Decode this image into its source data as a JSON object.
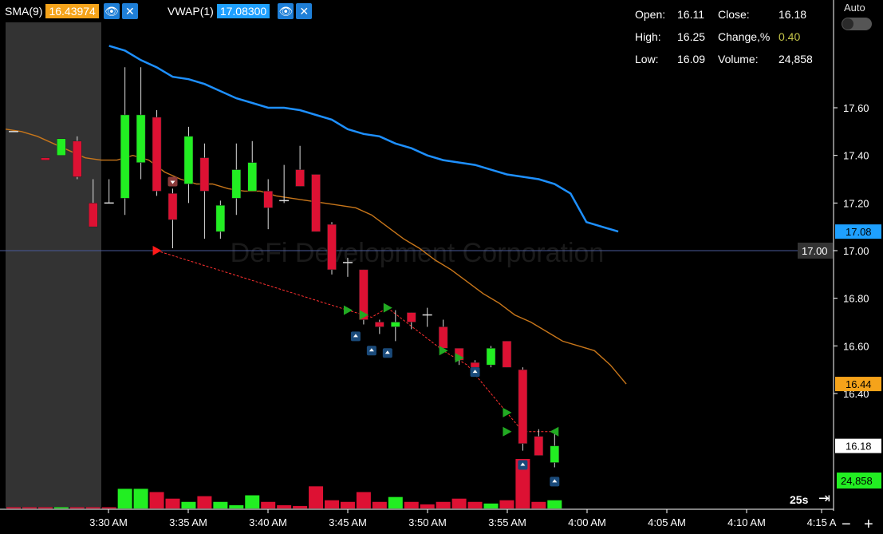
{
  "indicators": [
    {
      "name": "SMA(9)",
      "value": "16.43974",
      "color": "#f5a31a"
    },
    {
      "name": "VWAP(1)",
      "value": "17.08300",
      "color": "#1ea0ff"
    }
  ],
  "ohlc": {
    "open_label": "Open:",
    "open": "16.11",
    "close_label": "Close:",
    "close": "16.18",
    "high_label": "High:",
    "high": "16.25",
    "change_label": "Change,%",
    "change": "0.40",
    "low_label": "Low:",
    "low": "16.09",
    "volume_label": "Volume:",
    "volume": "24,858"
  },
  "auto_label": "Auto",
  "watermark": "DeFi Development Corporation",
  "interval_label": "25s",
  "zoom_out": "−",
  "zoom_in": "+",
  "price_axis": {
    "min": 16.2,
    "max": 17.8,
    "ticks": [
      "17.60",
      "17.40",
      "17.20",
      "17.00",
      "16.80",
      "16.60",
      "16.40"
    ]
  },
  "price_badges": [
    {
      "value": 17.08,
      "label": "17.08",
      "bg": "#1ea0ff",
      "fg": "#000"
    },
    {
      "value": 16.44,
      "label": "16.44",
      "bg": "#f5a31a",
      "fg": "#000"
    },
    {
      "value": 16.18,
      "label": "16.18",
      "bg": "#ffffff",
      "fg": "#000"
    }
  ],
  "volume_badge": {
    "label": "24,858",
    "bg": "#22ee22",
    "fg": "#000"
  },
  "hline": {
    "value": 17.0,
    "label": "17.00"
  },
  "time_axis": [
    "3:30 AM",
    "3:35 AM",
    "3:40 AM",
    "3:45 AM",
    "3:50 AM",
    "3:55 AM",
    "4:00 AM",
    "4:05 AM",
    "4:10 AM",
    "4:15 A"
  ],
  "colors": {
    "up": "#22ee22",
    "down": "#dd1133",
    "sma": "#c8761a",
    "vwap": "#1e90ff",
    "premarket": "#333333"
  },
  "chart_data": {
    "type": "candlestick",
    "interval": "25s",
    "x": [
      "3:27:55",
      "3:28:20",
      "3:28:45",
      "3:29:10",
      "3:29:35",
      "3:30:00",
      "3:30:25",
      "3:30:50",
      "3:31:15",
      "3:31:40",
      "3:32:05",
      "3:32:30",
      "3:32:55",
      "3:33:20",
      "3:33:45",
      "3:34:10",
      "3:34:35",
      "3:35:00",
      "3:35:25",
      "3:35:50",
      "3:36:15",
      "3:36:40",
      "3:37:05",
      "3:37:30",
      "3:37:55",
      "3:38:20",
      "3:38:45",
      "3:39:10",
      "3:39:35",
      "3:40:00",
      "3:40:25",
      "3:40:50",
      "3:41:15",
      "3:41:40",
      "3:42:05",
      "3:42:30",
      "3:42:55",
      "3:43:20",
      "3:43:45",
      "3:44:10",
      "3:44:35",
      "3:45:00",
      "3:45:25",
      "3:45:50",
      "3:46:15",
      "3:46:40",
      "3:47:05",
      "3:47:30",
      "3:47:55",
      "3:48:20",
      "3:48:45",
      "3:49:10",
      "3:49:35",
      "3:50:00",
      "3:50:25",
      "3:50:50",
      "3:51:15",
      "3:51:40",
      "3:52:05",
      "3:52:30",
      "3:52:55",
      "3:53:20",
      "3:53:45",
      "3:54:10",
      "3:54:35",
      "3:55:00",
      "3:55:25",
      "3:55:50",
      "3:56:15",
      "3:56:40"
    ],
    "candles": [
      {
        "t": 0,
        "o": 17.5,
        "h": 17.5,
        "l": 17.5,
        "c": 17.5
      },
      {
        "t": 2,
        "o": 17.39,
        "h": 17.39,
        "l": 17.38,
        "c": 17.38
      },
      {
        "t": 3,
        "o": 17.4,
        "h": 17.47,
        "l": 17.4,
        "c": 17.47
      },
      {
        "t": 4,
        "o": 17.46,
        "h": 17.48,
        "l": 17.3,
        "c": 17.31
      },
      {
        "t": 5,
        "o": 17.2,
        "h": 17.3,
        "l": 17.1,
        "c": 17.1
      },
      {
        "t": 6,
        "o": 17.2,
        "h": 17.3,
        "l": 17.2,
        "c": 17.2
      },
      {
        "t": 7,
        "o": 17.22,
        "h": 17.77,
        "l": 17.15,
        "c": 17.57
      },
      {
        "t": 8,
        "o": 17.37,
        "h": 17.77,
        "l": 17.3,
        "c": 17.57
      },
      {
        "t": 9,
        "o": 17.56,
        "h": 17.59,
        "l": 17.23,
        "c": 17.25
      },
      {
        "t": 10,
        "o": 17.24,
        "h": 17.26,
        "l": 17.01,
        "c": 17.13
      },
      {
        "t": 11,
        "o": 17.28,
        "h": 17.52,
        "l": 17.2,
        "c": 17.48
      },
      {
        "t": 12,
        "o": 17.39,
        "h": 17.45,
        "l": 17.05,
        "c": 17.25
      },
      {
        "t": 13,
        "o": 17.08,
        "h": 17.21,
        "l": 17.05,
        "c": 17.19
      },
      {
        "t": 14,
        "o": 17.22,
        "h": 17.45,
        "l": 17.15,
        "c": 17.34
      },
      {
        "t": 15,
        "o": 17.25,
        "h": 17.46,
        "l": 17.25,
        "c": 17.37
      },
      {
        "t": 16,
        "o": 17.25,
        "h": 17.3,
        "l": 17.09,
        "c": 17.18
      },
      {
        "t": 17,
        "o": 17.21,
        "h": 17.36,
        "l": 17.2,
        "c": 17.21
      },
      {
        "t": 18,
        "o": 17.34,
        "h": 17.44,
        "l": 17.27,
        "c": 17.27
      },
      {
        "t": 19,
        "o": 17.32,
        "h": 17.32,
        "l": 17.08,
        "c": 17.08
      },
      {
        "t": 20,
        "o": 17.11,
        "h": 17.12,
        "l": 16.9,
        "c": 16.92
      },
      {
        "t": 21,
        "o": 16.95,
        "h": 16.97,
        "l": 16.89,
        "c": 16.95
      },
      {
        "t": 22,
        "o": 16.92,
        "h": 16.92,
        "l": 16.69,
        "c": 16.71
      },
      {
        "t": 23,
        "o": 16.7,
        "h": 16.71,
        "l": 16.65,
        "c": 16.68
      },
      {
        "t": 24,
        "o": 16.68,
        "h": 16.75,
        "l": 16.62,
        "c": 16.7
      },
      {
        "t": 25,
        "o": 16.74,
        "h": 16.74,
        "l": 16.67,
        "c": 16.7
      },
      {
        "t": 26,
        "o": 16.73,
        "h": 16.76,
        "l": 16.68,
        "c": 16.73
      },
      {
        "t": 27,
        "o": 16.68,
        "h": 16.71,
        "l": 16.6,
        "c": 16.59
      },
      {
        "t": 28,
        "o": 16.59,
        "h": 16.58,
        "l": 16.52,
        "c": 16.54
      },
      {
        "t": 29,
        "o": 16.53,
        "h": 16.54,
        "l": 16.51,
        "c": 16.51
      },
      {
        "t": 30,
        "o": 16.52,
        "h": 16.6,
        "l": 16.51,
        "c": 16.59
      },
      {
        "t": 31,
        "o": 16.62,
        "h": 16.62,
        "l": 16.51,
        "c": 16.51
      },
      {
        "t": 32,
        "o": 16.5,
        "h": 16.51,
        "l": 16.16,
        "c": 16.19
      },
      {
        "t": 33,
        "o": 16.22,
        "h": 16.25,
        "l": 16.14,
        "c": 16.14
      },
      {
        "t": 34,
        "o": 16.11,
        "h": 16.25,
        "l": 16.09,
        "c": 16.18
      }
    ],
    "volume": [
      {
        "t": 0,
        "v": 100,
        "c": "down"
      },
      {
        "t": 1,
        "v": 100,
        "c": "down"
      },
      {
        "t": 2,
        "v": 100,
        "c": "down"
      },
      {
        "t": 3,
        "v": 120,
        "c": "up"
      },
      {
        "t": 4,
        "v": 100,
        "c": "down"
      },
      {
        "t": 5,
        "v": 100,
        "c": "down"
      },
      {
        "t": 6,
        "v": 100,
        "c": "down"
      },
      {
        "t": 7,
        "v": 25400,
        "c": "up"
      },
      {
        "t": 8,
        "v": 25400,
        "c": "up"
      },
      {
        "t": 9,
        "v": 21200,
        "c": "down"
      },
      {
        "t": 10,
        "v": 12700,
        "c": "down"
      },
      {
        "t": 11,
        "v": 8500,
        "c": "up"
      },
      {
        "t": 12,
        "v": 15900,
        "c": "down"
      },
      {
        "t": 13,
        "v": 8500,
        "c": "up"
      },
      {
        "t": 14,
        "v": 4200,
        "c": "up"
      },
      {
        "t": 15,
        "v": 17000,
        "c": "up"
      },
      {
        "t": 16,
        "v": 8500,
        "c": "down"
      },
      {
        "t": 17,
        "v": 4200,
        "c": "down"
      },
      {
        "t": 18,
        "v": 3200,
        "c": "down"
      },
      {
        "t": 19,
        "v": 28600,
        "c": "down"
      },
      {
        "t": 20,
        "v": 10600,
        "c": "down"
      },
      {
        "t": 21,
        "v": 8500,
        "c": "down"
      },
      {
        "t": 22,
        "v": 21200,
        "c": "down"
      },
      {
        "t": 23,
        "v": 8500,
        "c": "down"
      },
      {
        "t": 24,
        "v": 14800,
        "c": "up"
      },
      {
        "t": 25,
        "v": 8500,
        "c": "down"
      },
      {
        "t": 26,
        "v": 5300,
        "c": "down"
      },
      {
        "t": 27,
        "v": 8500,
        "c": "down"
      },
      {
        "t": 28,
        "v": 12700,
        "c": "down"
      },
      {
        "t": 29,
        "v": 8500,
        "c": "down"
      },
      {
        "t": 30,
        "v": 6400,
        "c": "up"
      },
      {
        "t": 31,
        "v": 10600,
        "c": "down"
      },
      {
        "t": 32,
        "v": 64000,
        "c": "down"
      },
      {
        "t": 33,
        "v": 8500,
        "c": "down"
      },
      {
        "t": 34,
        "v": 10600,
        "c": "up"
      }
    ],
    "vwap": [
      17.86,
      17.84,
      17.8,
      17.77,
      17.73,
      17.72,
      17.7,
      17.67,
      17.64,
      17.62,
      17.6,
      17.6,
      17.59,
      17.57,
      17.55,
      17.51,
      17.49,
      17.48,
      17.45,
      17.43,
      17.4,
      17.38,
      17.37,
      17.36,
      17.34,
      17.32,
      17.31,
      17.3,
      17.28,
      17.24,
      17.12,
      17.1,
      17.08
    ],
    "vwap_start": 6,
    "sma": [
      17.51,
      17.5,
      17.48,
      17.45,
      17.42,
      17.39,
      17.38,
      17.38,
      17.4,
      17.38,
      17.33,
      17.3,
      17.28,
      17.28,
      17.26,
      17.25,
      17.25,
      17.23,
      17.22,
      17.21,
      17.2,
      17.19,
      17.18,
      17.15,
      17.1,
      17.05,
      17.01,
      16.96,
      16.92,
      16.87,
      16.82,
      16.78,
      16.73,
      16.7,
      16.66,
      16.62,
      16.6,
      16.58,
      16.52,
      16.44
    ],
    "sma_t": [
      0,
      1,
      2,
      3,
      4,
      5,
      6,
      7,
      8,
      9,
      10,
      11,
      12,
      13,
      14,
      15,
      16,
      17,
      18,
      19,
      20,
      21,
      22,
      23,
      24,
      25,
      26,
      27,
      28,
      29,
      30,
      31,
      32,
      33,
      34,
      35,
      36,
      37,
      38,
      39
    ],
    "trade_line": [
      {
        "t": 9,
        "p": 17.0
      },
      {
        "t": 21,
        "p": 16.75
      },
      {
        "t": 22.5,
        "p": 16.72
      },
      {
        "t": 23.5,
        "p": 16.76
      },
      {
        "t": 27,
        "p": 16.58
      },
      {
        "t": 28.5,
        "p": 16.52
      },
      {
        "t": 31,
        "p": 16.32
      },
      {
        "t": 32,
        "p": 16.24
      },
      {
        "t": 34,
        "p": 16.24
      }
    ],
    "buy_markers": [
      {
        "t": 9,
        "p": 17.0,
        "dir": "right",
        "color": "#ff1a1a"
      },
      {
        "t": 21,
        "p": 16.75,
        "dir": "right",
        "color": "#22aa22"
      },
      {
        "t": 22,
        "p": 16.73,
        "dir": "right",
        "color": "#22aa22"
      },
      {
        "t": 23.5,
        "p": 16.76,
        "dir": "right",
        "color": "#22aa22"
      },
      {
        "t": 27,
        "p": 16.58,
        "dir": "right",
        "color": "#22aa22"
      },
      {
        "t": 28,
        "p": 16.55,
        "dir": "right",
        "color": "#22aa22"
      },
      {
        "t": 31,
        "p": 16.32,
        "dir": "right",
        "color": "#22aa22"
      },
      {
        "t": 31,
        "p": 16.24,
        "dir": "right",
        "color": "#22aa22"
      },
      {
        "t": 34,
        "p": 16.24,
        "dir": "left",
        "color": "#22aa22"
      }
    ],
    "flag_markers": [
      {
        "t": 10,
        "p": 17.29,
        "kind": "down"
      },
      {
        "t": 21.5,
        "p": 16.64,
        "kind": "up"
      },
      {
        "t": 22.5,
        "p": 16.58,
        "kind": "up"
      },
      {
        "t": 23.5,
        "p": 16.57,
        "kind": "up"
      },
      {
        "t": 29,
        "p": 16.49,
        "kind": "up"
      },
      {
        "t": 32,
        "p": 16.1,
        "kind": "up"
      },
      {
        "t": 34,
        "p": 16.03,
        "kind": "up"
      }
    ]
  }
}
